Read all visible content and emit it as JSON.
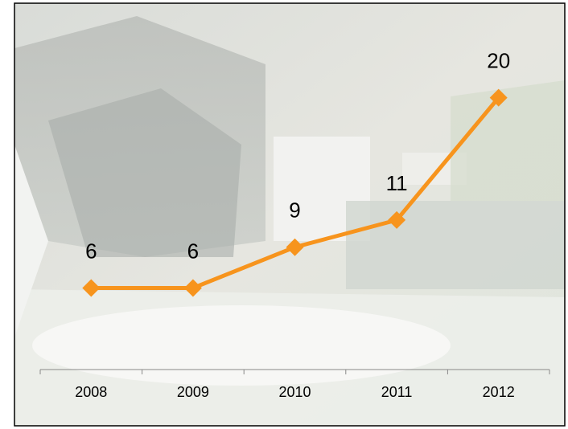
{
  "chart_data": {
    "type": "line",
    "categories": [
      "2008",
      "2009",
      "2010",
      "2011",
      "2012"
    ],
    "values": [
      6,
      6,
      9,
      11,
      20
    ],
    "color": "#f7941d",
    "ylim": [
      0,
      25
    ]
  }
}
